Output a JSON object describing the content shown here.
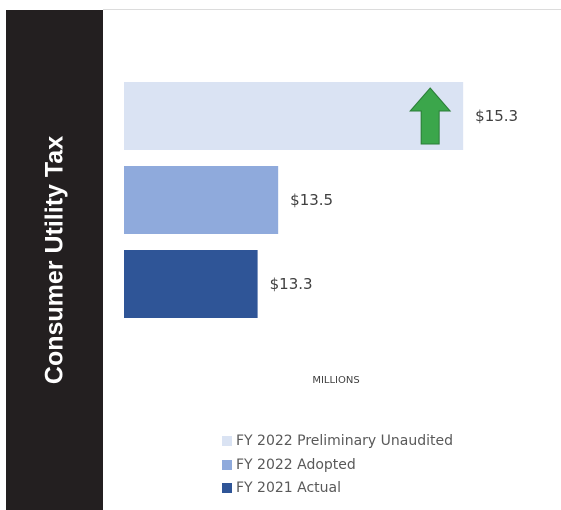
{
  "panel": {
    "title": "Consumer Utility Tax",
    "background": "#231f20"
  },
  "chart_data": {
    "type": "bar",
    "orientation": "horizontal",
    "categories": [
      "FY 2022 Preliminary Unaudited",
      "FY 2022 Adopted",
      "FY 2021 Actual"
    ],
    "values": [
      15.3,
      13.5,
      13.3
    ],
    "value_labels": [
      "$15.3",
      "$13.5",
      "$13.3"
    ],
    "colors": [
      "#dae3f3",
      "#8faadc",
      "#2f5597"
    ],
    "axis_unit": "MILLIONS",
    "xlim": [
      12.0,
      15.6
    ],
    "grid": false,
    "legend": {
      "position": "bottom",
      "entries": [
        "FY 2022 Preliminary Unaudited",
        "FY 2022 Adopted",
        "FY 2021 Actual"
      ]
    },
    "annotation": {
      "icon": "up-arrow-icon",
      "color": "#3ba64b",
      "bar_index": 0
    }
  }
}
